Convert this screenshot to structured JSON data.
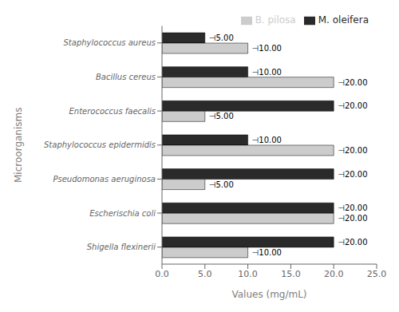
{
  "chart_data": {
    "type": "bar",
    "orientation": "horizontal",
    "categories": [
      "Shigella flexinerii",
      "Escherischia coli",
      "Pseudomonas aeruginosa",
      "Staphylococcus epidermidis",
      "Enterococcus faecalis",
      "Bacillus cereus",
      "Staphylococcus aureus"
    ],
    "series": [
      {
        "name": "M. oleifera",
        "color": "#2a2a2a",
        "values": [
          20.0,
          20.0,
          20.0,
          10.0,
          20.0,
          10.0,
          5.0
        ],
        "value_labels": [
          "⊣20.00",
          "⊣20.00",
          "⊣20.00",
          "⊣10.00",
          "⊣20.00",
          "⊣10.00",
          "⊣5.00"
        ]
      },
      {
        "name": "B. pilosa",
        "color": "#cccccc",
        "values": [
          10.0,
          20.0,
          5.0,
          20.0,
          5.0,
          20.0,
          10.0
        ],
        "value_labels": [
          "⊣10.00",
          "⊣20.00",
          "⊣5.00",
          "⊣20.00",
          "⊣5.00",
          "⊣20.00",
          "⊣10.00"
        ]
      }
    ],
    "xlabel": "Values (mg/mL)",
    "ylabel": "Microorganisms",
    "xlim": [
      0,
      25
    ],
    "xticks": [
      {
        "value": 0,
        "label": "0.0"
      },
      {
        "value": 5,
        "label": "5.0"
      },
      {
        "value": 10,
        "label": "10.0"
      },
      {
        "value": 15,
        "label": "15.0"
      },
      {
        "value": 20,
        "label": "20.0"
      },
      {
        "value": 25,
        "label": "25.0"
      }
    ],
    "legend": "upper right",
    "data_labels": true,
    "grid": false
  }
}
